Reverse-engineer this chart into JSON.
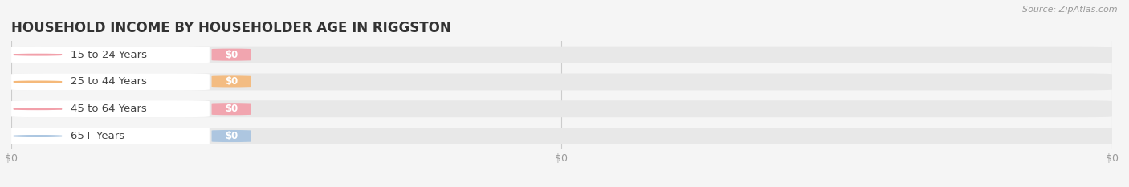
{
  "title": "HOUSEHOLD INCOME BY HOUSEHOLDER AGE IN RIGGSTON",
  "source_text": "Source: ZipAtlas.com",
  "categories": [
    "15 to 24 Years",
    "25 to 44 Years",
    "45 to 64 Years",
    "65+ Years"
  ],
  "values": [
    0,
    0,
    0,
    0
  ],
  "bar_colors": [
    "#f2a0aa",
    "#f5b97a",
    "#f2a0aa",
    "#a8c4e0"
  ],
  "bar_bg_color": "#e8e8e8",
  "label_bg_color": "#f8f8f8",
  "xlim": [
    0,
    1
  ],
  "xtick_positions": [
    0,
    0.5,
    1.0
  ],
  "xtick_labels": [
    "$0",
    "$0",
    "$0"
  ],
  "background_color": "#f5f5f5",
  "plot_bg_color": "#f5f5f5",
  "title_fontsize": 12,
  "bar_height": 0.62,
  "fig_width": 14.06,
  "fig_height": 2.33
}
